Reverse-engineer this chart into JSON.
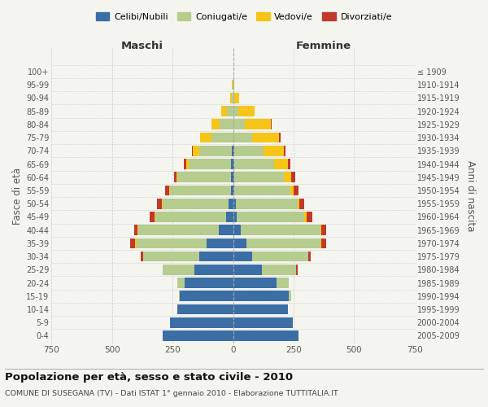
{
  "age_groups": [
    "0-4",
    "5-9",
    "10-14",
    "15-19",
    "20-24",
    "25-29",
    "30-34",
    "35-39",
    "40-44",
    "45-49",
    "50-54",
    "55-59",
    "60-64",
    "65-69",
    "70-74",
    "75-79",
    "80-84",
    "85-89",
    "90-94",
    "95-99",
    "100+"
  ],
  "birth_years": [
    "2005-2009",
    "2000-2004",
    "1995-1999",
    "1990-1994",
    "1985-1989",
    "1980-1984",
    "1975-1979",
    "1970-1974",
    "1965-1969",
    "1960-1964",
    "1955-1959",
    "1950-1954",
    "1945-1949",
    "1940-1944",
    "1935-1939",
    "1930-1934",
    "1925-1929",
    "1920-1924",
    "1915-1919",
    "1910-1914",
    "≤ 1909"
  ],
  "male": {
    "celibi": [
      290,
      260,
      230,
      220,
      200,
      160,
      140,
      110,
      60,
      30,
      20,
      10,
      10,
      10,
      5,
      0,
      0,
      0,
      0,
      0,
      0
    ],
    "coniugati": [
      0,
      0,
      0,
      5,
      30,
      130,
      230,
      290,
      330,
      290,
      270,
      250,
      220,
      175,
      135,
      90,
      55,
      25,
      5,
      2,
      0
    ],
    "vedovi": [
      0,
      0,
      0,
      0,
      0,
      0,
      0,
      5,
      5,
      5,
      5,
      5,
      5,
      10,
      25,
      45,
      35,
      25,
      8,
      3,
      0
    ],
    "divorziati": [
      0,
      0,
      0,
      0,
      0,
      0,
      10,
      20,
      15,
      20,
      20,
      15,
      10,
      10,
      5,
      0,
      0,
      0,
      0,
      0,
      0
    ]
  },
  "female": {
    "nubili": [
      270,
      245,
      225,
      230,
      180,
      120,
      80,
      55,
      30,
      15,
      10,
      5,
      5,
      5,
      5,
      0,
      0,
      0,
      0,
      0,
      0
    ],
    "coniugate": [
      0,
      0,
      0,
      10,
      50,
      140,
      230,
      305,
      330,
      280,
      255,
      230,
      205,
      165,
      120,
      80,
      50,
      20,
      5,
      0,
      0
    ],
    "vedove": [
      0,
      0,
      0,
      0,
      0,
      0,
      0,
      5,
      5,
      8,
      10,
      15,
      30,
      55,
      85,
      110,
      105,
      70,
      20,
      5,
      0
    ],
    "divorziate": [
      0,
      0,
      0,
      0,
      0,
      5,
      10,
      20,
      20,
      25,
      20,
      20,
      15,
      10,
      5,
      5,
      5,
      0,
      0,
      0,
      0
    ]
  },
  "colors": {
    "celibi": "#3a6ea5",
    "coniugati": "#b5cc8e",
    "vedovi": "#f5c518",
    "divorziati": "#c0392b"
  },
  "title": "Popolazione per età, sesso e stato civile - 2010",
  "subtitle": "COMUNE DI SUSEGANA (TV) - Dati ISTAT 1° gennaio 2010 - Elaborazione TUTTITALIA.IT",
  "xlabel_left": "Maschi",
  "xlabel_right": "Femmine",
  "ylabel_left": "Fasce di età",
  "ylabel_right": "Anni di nascita",
  "xlim": 750,
  "background_color": "#f5f5f0",
  "grid_color": "#cccccc"
}
